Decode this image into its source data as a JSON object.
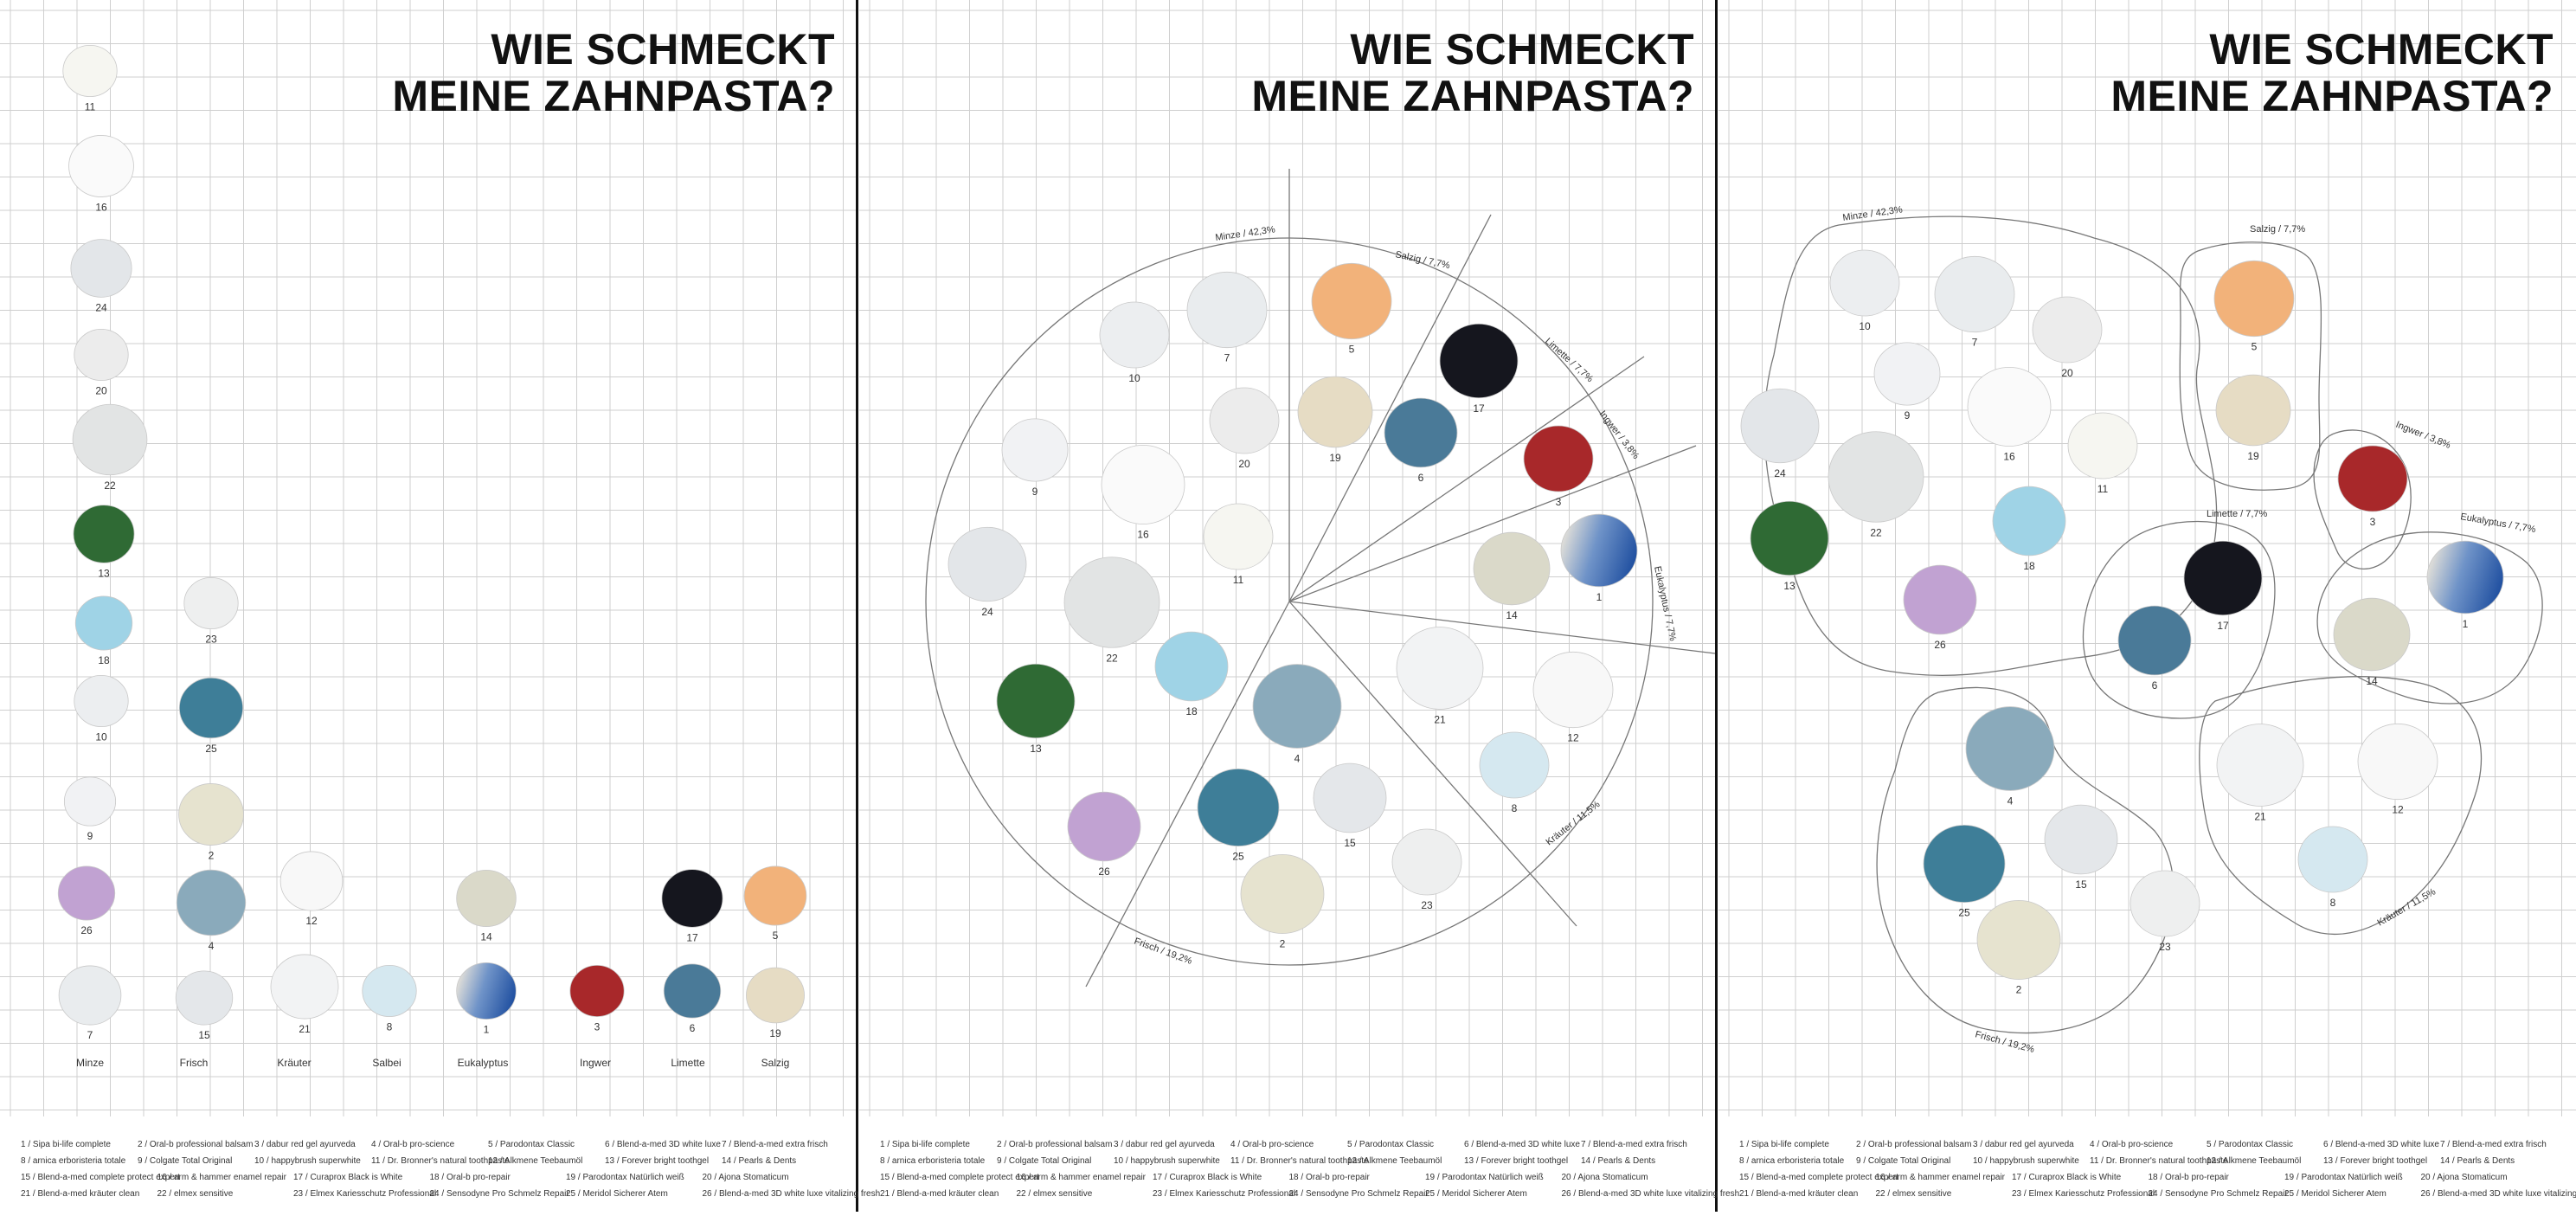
{
  "title_line1": "WIE SCHMECKT",
  "title_line2": "MEINE ZAHNPASTA?",
  "colors": {
    "grid": "#cfcfcf",
    "divider": "#111111",
    "outline": "#777777"
  },
  "categories": [
    "Minze",
    "Frisch",
    "Kräuter",
    "Salbei",
    "Eukalyptus",
    "Ingwer",
    "Limette",
    "Salzig"
  ],
  "segment_labels": {
    "minze": "Minze / 42,3%",
    "salzig": "Salzig / 7,7%",
    "limette": "Limette / 7,7%",
    "ingwer": "Ingwer / 3,8%",
    "eukalyptus": "Eukalyptus / 7,7%",
    "kraeuter": "Kräuter / 11,5%",
    "frisch": "Frisch / 19,2%"
  },
  "swatches": [
    {
      "n": "1",
      "color": "#2a5faa"
    },
    {
      "n": "2",
      "color": "#e6e3cf"
    },
    {
      "n": "3",
      "color": "#a8282a"
    },
    {
      "n": "4",
      "color": "#8aaabb"
    },
    {
      "n": "5",
      "color": "#f2b27a"
    },
    {
      "n": "6",
      "color": "#4a7a98"
    },
    {
      "n": "7",
      "color": "#e9ecee"
    },
    {
      "n": "8",
      "color": "#d5e8f0"
    },
    {
      "n": "9",
      "color": "#f1f2f4"
    },
    {
      "n": "10",
      "color": "#eceef0"
    },
    {
      "n": "11",
      "color": "#f6f6f1"
    },
    {
      "n": "12",
      "color": "#f8f8f8"
    },
    {
      "n": "13",
      "color": "#2f6a34"
    },
    {
      "n": "14",
      "color": "#dad9c9"
    },
    {
      "n": "15",
      "color": "#e4e7ea"
    },
    {
      "n": "16",
      "color": "#fafafa"
    },
    {
      "n": "17",
      "color": "#15161e"
    },
    {
      "n": "18",
      "color": "#9fd3e6"
    },
    {
      "n": "19",
      "color": "#e6dcc4"
    },
    {
      "n": "20",
      "color": "#ececec"
    },
    {
      "n": "21",
      "color": "#f2f3f4"
    },
    {
      "n": "22",
      "color": "#e2e4e4"
    },
    {
      "n": "23",
      "color": "#eeefef"
    },
    {
      "n": "24",
      "color": "#e3e6e9"
    },
    {
      "n": "25",
      "color": "#3e7e98"
    },
    {
      "n": "26",
      "color": "#c1a2d2"
    }
  ],
  "legend": [
    "1 / Sipa bi-life complete",
    "2 / Oral-b professional balsam",
    "3 / dabur red gel ayurveda",
    "4 / Oral-b pro-science",
    "5 / Parodontax Classic",
    "6 / Blend-a-med 3D white luxe",
    "7 / Blend-a-med extra frisch",
    "8 / arnica erboristeria totale",
    "9 / Colgate Total Original",
    "10 / happybrush superwhite",
    "11 / Dr. Bronner's natural toothpaste",
    "12 / Alkmene Teebaumöl",
    "13 / Forever bright toothgel",
    "14 / Pearls & Dents",
    "15 / Blend-a-med complete protect expert",
    "16 / arm & hammer enamel repair",
    "17 / Curaprox Black is White",
    "18 / Oral-b pro-repair",
    "19 / Parodontax Natürlich weiß",
    "20 / Ajona Stomaticum",
    "21 / Blend-a-med kräuter clean",
    "22 / elmex sensitive",
    "23 / Elmex Kariesschutz Professional",
    "24 / Sensodyne Pro Schmelz Repair",
    "25 / Meridol Sicherer Atem",
    "26 / Blend-a-med 3D white luxe vitalizing fresh"
  ]
}
